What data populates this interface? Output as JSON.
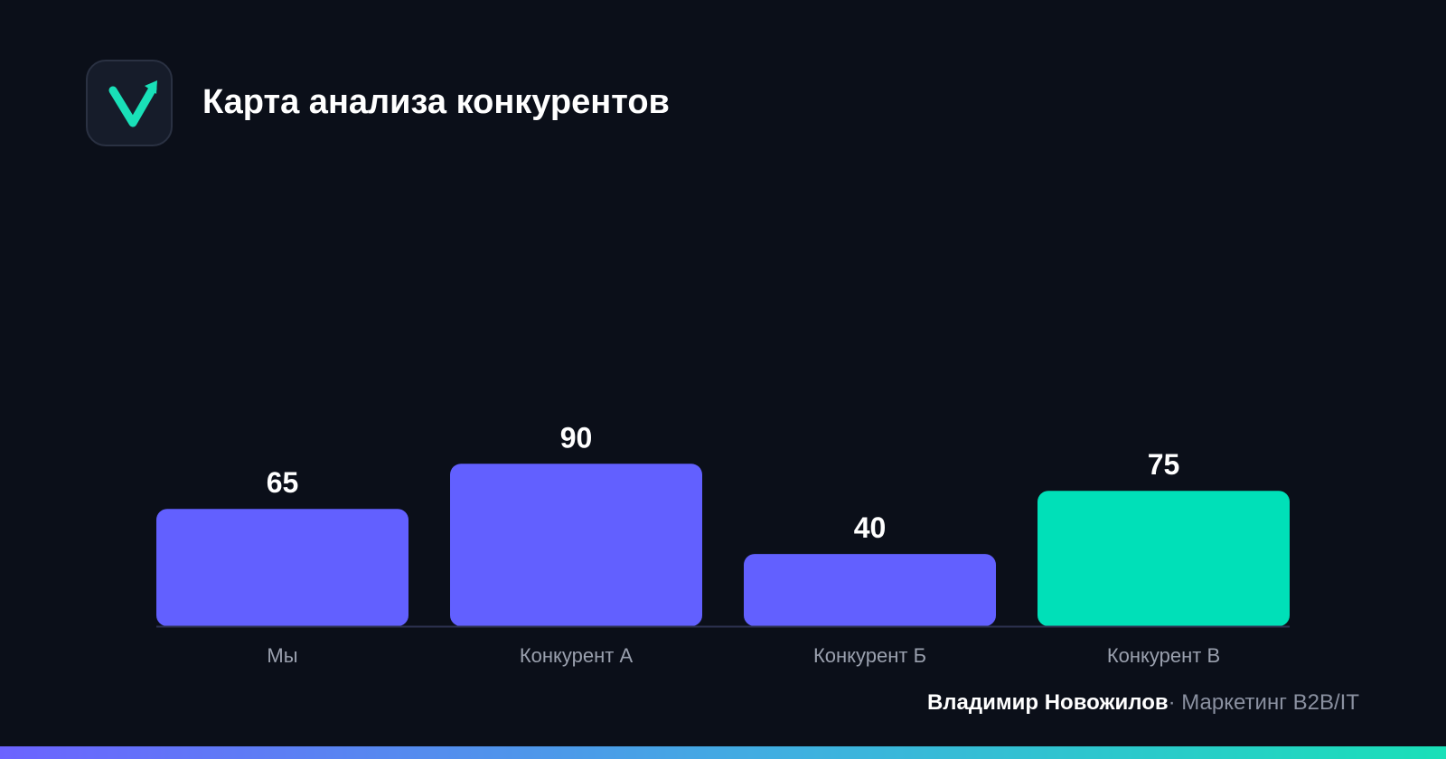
{
  "header": {
    "title": "Карта анализа конкурентов",
    "logo_icon": "checkmark-arrow-icon"
  },
  "colors": {
    "background": "#0b0f19",
    "bar_default": "#6260ff",
    "bar_highlight": "#00e0b8",
    "axis": "#2c3150",
    "category_label": "#9aa0ae",
    "value_label": "#ffffff"
  },
  "chart_data": {
    "type": "bar",
    "categories": [
      "Мы",
      "Конкурент А",
      "Конкурент Б",
      "Конкурент В"
    ],
    "values": [
      65,
      90,
      40,
      75
    ],
    "highlight": [
      false,
      false,
      false,
      true
    ],
    "title": "",
    "xlabel": "",
    "ylabel": "",
    "ylim": [
      0,
      100
    ],
    "grid": false,
    "data_labels": true
  },
  "footer": {
    "author": "Владимир Новожилов",
    "separator": "·",
    "role": "Маркетинг B2B/IT"
  }
}
